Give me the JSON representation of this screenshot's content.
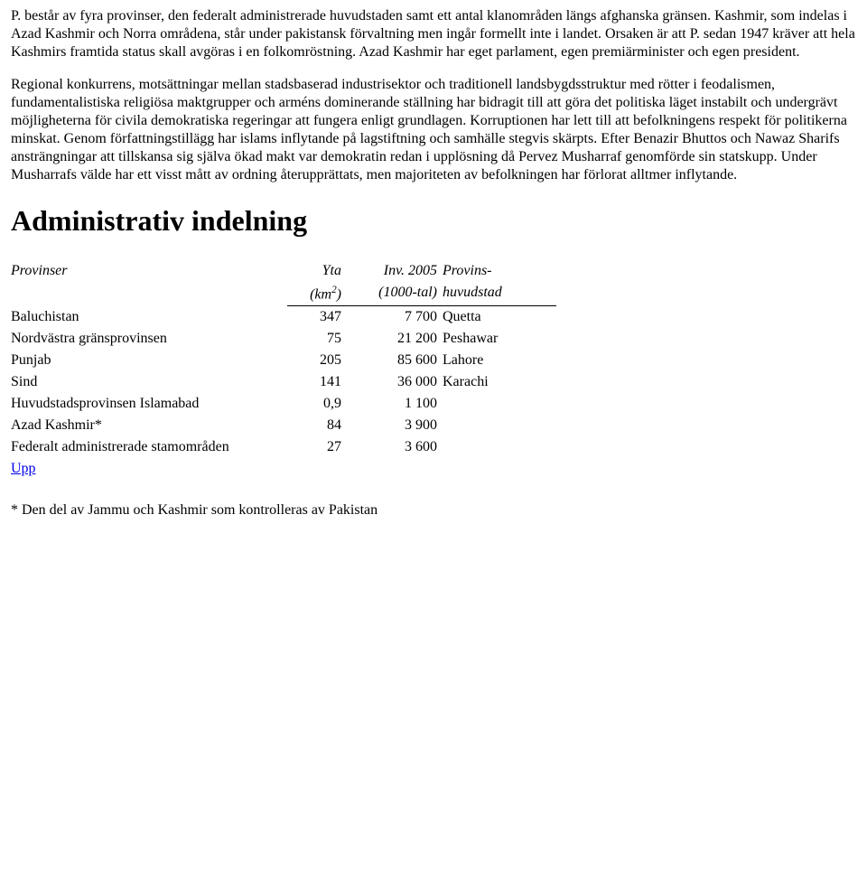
{
  "paragraphs": {
    "p1": "P. består av fyra provinser, den federalt administrerade huvudstaden samt ett antal klanområden längs afghanska gränsen. Kashmir, som indelas i Azad Kashmir och Norra områdena, står under pakistansk förvaltning men ingår formellt inte i landet. Orsaken är att P. sedan 1947 kräver att hela Kashmirs framtida status skall avgöras i en folkomröstning. Azad Kashmir har eget parlament, egen premiärminister och egen president.",
    "p2": "Regional konkurrens, motsättningar mellan stadsbaserad industrisektor och traditionell landsbygdsstruktur med rötter i feodalismen, fundamentalistiska religiösa maktgrupper och arméns dominerande ställning har bidragit till att göra det politiska läget instabilt och undergrävt möjligheterna för civila demokratiska regeringar att fungera enligt grundlagen. Korruptionen har lett till att befolkningens respekt för politikerna minskat. Genom författningstillägg har islams inflytande på lagstiftning och samhälle stegvis skärpts. Efter Benazir Bhuttos och Nawaz Sharifs ansträngningar att tillskansa sig själva ökad makt var demokratin redan i upplösning då Pervez Musharraf genomförde sin statskupp. Under Musharrafs välde har ett visst mått av ordning återupprättats, men majoriteten av befolkningen har förlorat alltmer inflytande."
  },
  "heading": "Administrativ indelning",
  "table": {
    "headers": {
      "provinces": "Provinser",
      "area_line1": "Yta",
      "area_line2_pre": "(km",
      "area_line2_sup": "2",
      "area_line2_post": ")",
      "pop_line1": "Inv. 2005",
      "pop_line2": "(1000-tal)",
      "cap_line1": "Provins-",
      "cap_line2": "huvudstad"
    },
    "rows": [
      {
        "name": "Baluchistan",
        "area": "347",
        "pop": "7 700",
        "capital": "Quetta"
      },
      {
        "name": "Nordvästra gränsprovinsen",
        "area": "75",
        "pop": "21 200",
        "capital": "Peshawar"
      },
      {
        "name": "Punjab",
        "area": "205",
        "pop": "85 600",
        "capital": "Lahore"
      },
      {
        "name": "Sind",
        "area": "141",
        "pop": "36 000",
        "capital": "Karachi"
      },
      {
        "name": "Huvudstadsprovinsen Islamabad",
        "area": "0,9",
        "pop": "1 100",
        "capital": ""
      },
      {
        "name": "Azad Kashmir*",
        "area": "84",
        "pop": "3 900",
        "capital": ""
      },
      {
        "name": "Federalt administrerade stamområden",
        "area": "27",
        "pop": "3 600",
        "capital": ""
      }
    ],
    "link": "Upp"
  },
  "footnote": "* Den del av Jammu och Kashmir som kontrolleras av Pakistan"
}
